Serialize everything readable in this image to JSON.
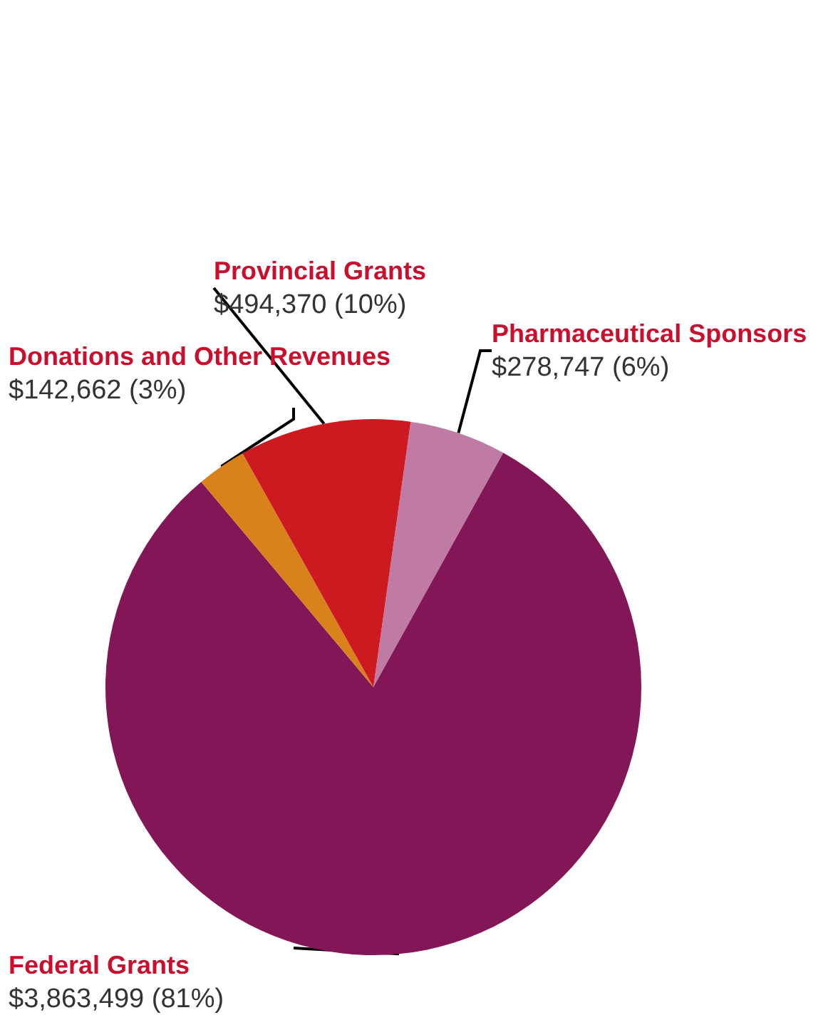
{
  "chart_data": {
    "type": "pie",
    "categories": [
      "Pharmaceutical Sponsors",
      "Federal Grants",
      "Donations and Other Revenues",
      "Provincial Grants"
    ],
    "values": [
      278747,
      3863499,
      142662,
      494370
    ],
    "colors": [
      "#c07ba5",
      "#831656",
      "#d9821c",
      "#cc1a20"
    ],
    "value_labels": [
      "$278,747 (6%)",
      "$3,863,499 (81%)",
      "$142,662 (3%)",
      "$494,370 (10%)"
    ]
  }
}
